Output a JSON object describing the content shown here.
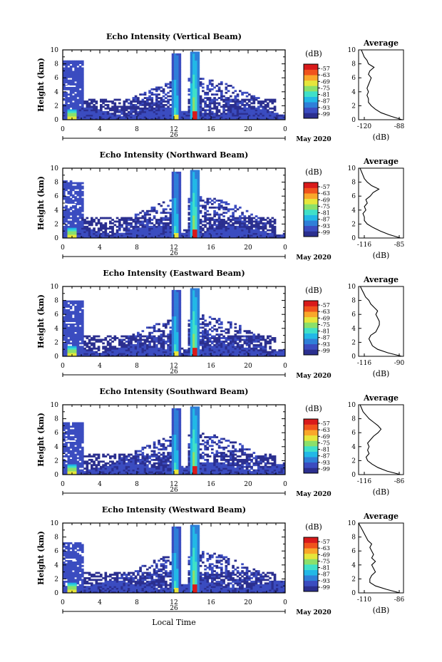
{
  "figure": {
    "xlabel": "Local Time",
    "date_label": "May 2020",
    "day_label": "26",
    "ylabel": "Height (km)",
    "cb_unit": "(dB)",
    "avg_xlabel": "(dB)"
  },
  "colormap": [
    "#2b2f8f",
    "#3b4cc0",
    "#2f7fd8",
    "#22b8e6",
    "#3fe0c8",
    "#8be06a",
    "#e6e63b",
    "#f9a72a",
    "#f0531c",
    "#d91a1a"
  ],
  "chart_data": [
    {
      "type": "heatmap",
      "title": "Echo Intensity (Vertical Beam)",
      "xlabel": "Local Time",
      "ylabel": "Height (km)",
      "xlim": [
        0,
        24
      ],
      "ylim": [
        0,
        10
      ],
      "x_ticks": [
        "0",
        "4",
        "8",
        "12",
        "16",
        "20",
        "0"
      ],
      "y_ticks": [
        "0",
        "2",
        "4",
        "6",
        "8",
        "10"
      ],
      "colorbar": {
        "unit": "(dB)",
        "ticks": [
          "-57",
          "-63",
          "-69",
          "-75",
          "-81",
          "-87",
          "-93",
          "-99"
        ]
      },
      "average": {
        "title": "Average",
        "xlabel": "(dB)",
        "xlim": [
          -120,
          -88
        ],
        "x_ticks": [
          "-120",
          "-88"
        ],
        "heights": [
          0,
          0.5,
          1,
          1.5,
          2,
          2.5,
          3,
          3.5,
          4,
          4.5,
          5,
          5.5,
          6,
          6.5,
          7,
          7.5,
          8,
          8.5,
          9,
          9.5,
          10
        ],
        "values": [
          -89,
          -97,
          -104,
          -108,
          -111,
          -113,
          -113,
          -114,
          -113,
          -114,
          -113,
          -112,
          -111,
          -113,
          -112,
          -109,
          -113,
          -114,
          -116,
          -117,
          -118
        ]
      }
    },
    {
      "type": "heatmap",
      "title": "Echo Intensity (Northward Beam)",
      "xlabel": "Local Time",
      "ylabel": "Height (km)",
      "xlim": [
        0,
        24
      ],
      "ylim": [
        0,
        10
      ],
      "x_ticks": [
        "0",
        "4",
        "8",
        "12",
        "16",
        "20",
        "0"
      ],
      "y_ticks": [
        "0",
        "2",
        "4",
        "6",
        "8",
        "10"
      ],
      "colorbar": {
        "unit": "(dB)",
        "ticks": [
          "-57",
          "-63",
          "-69",
          "-75",
          "-81",
          "-87",
          "-93",
          "-99"
        ]
      },
      "average": {
        "title": "Average",
        "xlabel": "(dB)",
        "xlim": [
          -116,
          -85
        ],
        "x_ticks": [
          "-116",
          "-85"
        ],
        "heights": [
          0,
          0.5,
          1,
          1.5,
          2,
          2.5,
          3,
          3.5,
          4,
          4.5,
          5,
          5.5,
          6,
          6.5,
          7,
          7.5,
          8,
          8.5,
          9,
          9.5,
          10
        ],
        "values": [
          -87,
          -95,
          -101,
          -106,
          -110,
          -112,
          -112,
          -113,
          -111,
          -112,
          -110,
          -111,
          -108,
          -106,
          -102,
          -107,
          -110,
          -112,
          -113,
          -114,
          -115
        ]
      }
    },
    {
      "type": "heatmap",
      "title": "Echo Intensity (Eastward Beam)",
      "xlabel": "Local Time",
      "ylabel": "Height (km)",
      "xlim": [
        0,
        24
      ],
      "ylim": [
        0,
        10
      ],
      "x_ticks": [
        "0",
        "4",
        "8",
        "12",
        "16",
        "20",
        "0"
      ],
      "y_ticks": [
        "0",
        "2",
        "4",
        "6",
        "8",
        "10"
      ],
      "colorbar": {
        "unit": "(dB)",
        "ticks": [
          "-57",
          "-63",
          "-69",
          "-75",
          "-81",
          "-87",
          "-93",
          "-99"
        ]
      },
      "average": {
        "title": "Average",
        "xlabel": "(dB)",
        "xlim": [
          -116,
          -90
        ],
        "x_ticks": [
          "-116",
          "-90"
        ],
        "heights": [
          0,
          0.5,
          1,
          1.5,
          2,
          2.5,
          3,
          3.5,
          4,
          4.5,
          5,
          5.5,
          6,
          6.5,
          7,
          7.5,
          8,
          8.5,
          9,
          9.5,
          10
        ],
        "values": [
          -91,
          -99,
          -105,
          -108,
          -109,
          -110,
          -109,
          -106,
          -105,
          -104,
          -104,
          -105,
          -106,
          -105,
          -107,
          -109,
          -110,
          -112,
          -113,
          -114,
          -115
        ]
      }
    },
    {
      "type": "heatmap",
      "title": "Echo Intensity (Southward Beam)",
      "xlabel": "Local Time",
      "ylabel": "Height (km)",
      "xlim": [
        0,
        24
      ],
      "ylim": [
        0,
        10
      ],
      "x_ticks": [
        "0",
        "4",
        "8",
        "12",
        "16",
        "20",
        "0"
      ],
      "y_ticks": [
        "0",
        "2",
        "4",
        "6",
        "8",
        "10"
      ],
      "colorbar": {
        "unit": "(dB)",
        "ticks": [
          "-57",
          "-63",
          "-69",
          "-75",
          "-81",
          "-87",
          "-93",
          "-99"
        ]
      },
      "average": {
        "title": "Average",
        "xlabel": "(dB)",
        "xlim": [
          -116,
          -86
        ],
        "x_ticks": [
          "-116",
          "-86"
        ],
        "heights": [
          0,
          0.5,
          1,
          1.5,
          2,
          2.5,
          3,
          3.5,
          4,
          4.5,
          5,
          5.5,
          6,
          6.5,
          7,
          7.5,
          8,
          8.5,
          9,
          9.5,
          10
        ],
        "values": [
          -88,
          -97,
          -103,
          -107,
          -110,
          -111,
          -109,
          -110,
          -109,
          -110,
          -108,
          -106,
          -103,
          -101,
          -103,
          -106,
          -109,
          -111,
          -113,
          -114,
          -115
        ]
      }
    },
    {
      "type": "heatmap",
      "title": "Echo Intensity (Westward Beam)",
      "xlabel": "Local Time",
      "ylabel": "Height (km)",
      "xlim": [
        0,
        24
      ],
      "ylim": [
        0,
        10
      ],
      "x_ticks": [
        "0",
        "4",
        "8",
        "12",
        "16",
        "20",
        "0"
      ],
      "y_ticks": [
        "0",
        "2",
        "4",
        "6",
        "8",
        "10"
      ],
      "colorbar": {
        "unit": "(dB)",
        "ticks": [
          "-57",
          "-63",
          "-69",
          "-75",
          "-81",
          "-87",
          "-93",
          "-99"
        ]
      },
      "average": {
        "title": "Average",
        "xlabel": "(dB)",
        "xlim": [
          -110,
          -86
        ],
        "x_ticks": [
          "-110",
          "-86"
        ],
        "heights": [
          0,
          0.5,
          1,
          1.5,
          2,
          2.5,
          3,
          3.5,
          4,
          4.5,
          5,
          5.5,
          6,
          6.5,
          7,
          7.5,
          8,
          8.5,
          9,
          9.5,
          10
        ],
        "values": [
          -88,
          -95,
          -101,
          -104,
          -104,
          -103,
          -101,
          -102,
          -103,
          -101,
          -103,
          -102,
          -103,
          -104,
          -103,
          -105,
          -106,
          -107,
          -108,
          -109,
          -110
        ]
      }
    }
  ]
}
